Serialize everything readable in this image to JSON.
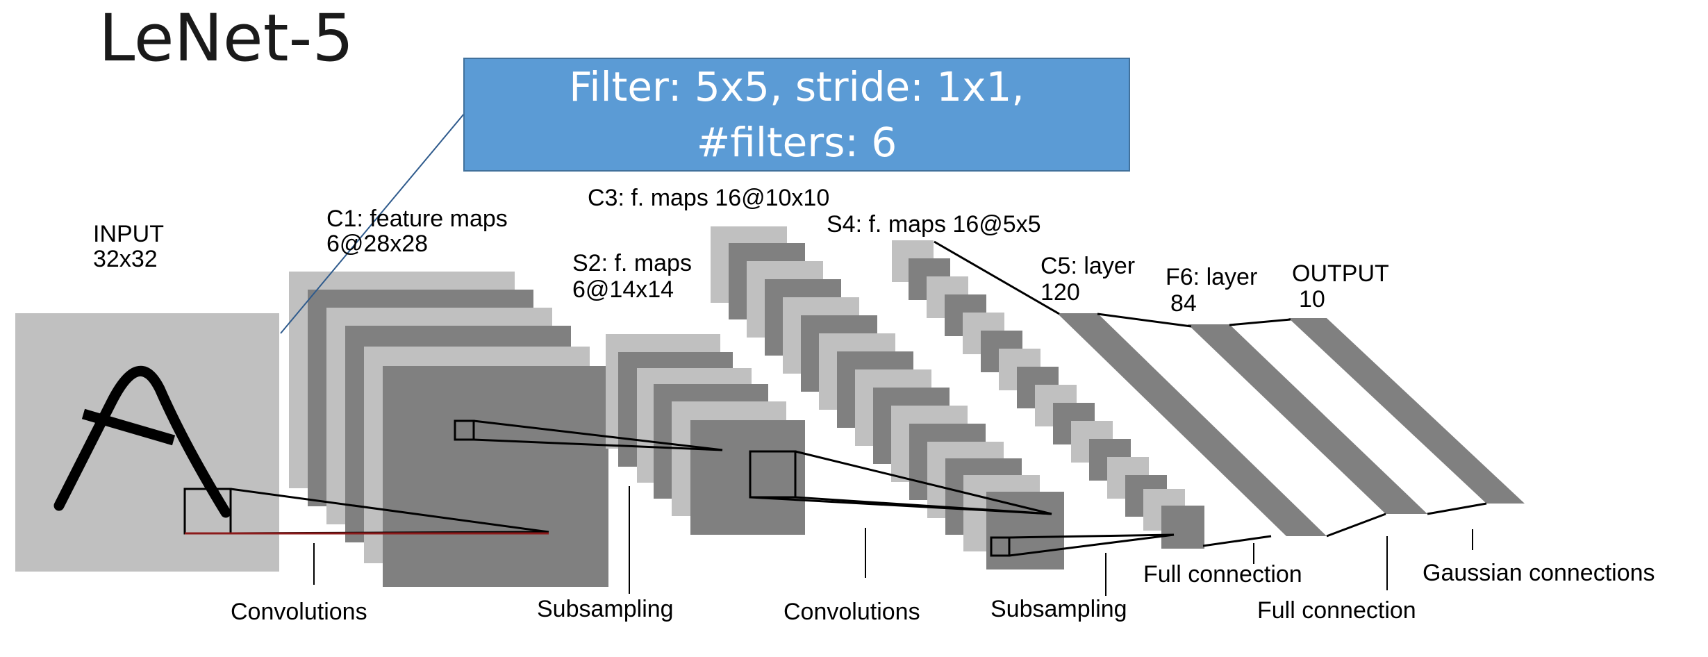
{
  "title": "LeNet-5",
  "callout": {
    "line1": "Filter: 5x5, stride: 1x1,",
    "line2": "#filters: 6"
  },
  "layers": {
    "input": {
      "name": "INPUT",
      "size": "32x32"
    },
    "c1": {
      "name": "C1: feature maps",
      "size": "6@28x28"
    },
    "s2": {
      "name": "S2: f. maps",
      "size": "6@14x14"
    },
    "c3": {
      "name": "C3: f. maps 16@10x10"
    },
    "s4": {
      "name": "S4: f. maps 16@5x5"
    },
    "c5": {
      "name": "C5: layer",
      "size": "120"
    },
    "f6": {
      "name": "F6: layer",
      "size": "84"
    },
    "output": {
      "name": "OUTPUT",
      "size": "10"
    }
  },
  "operations": {
    "conv1": "Convolutions",
    "sub1": "Subsampling",
    "conv2": "Convolutions",
    "sub2": "Subsampling",
    "full1": "Full connection",
    "full2": "Full connection",
    "gauss": "Gaussian connections"
  },
  "colors": {
    "light_map": "#c0c0c0",
    "dark_map": "#808080",
    "callout_fill": "#5b9bd5",
    "callout_border": "#41719c",
    "pointer_line": "#2e5a8c"
  }
}
